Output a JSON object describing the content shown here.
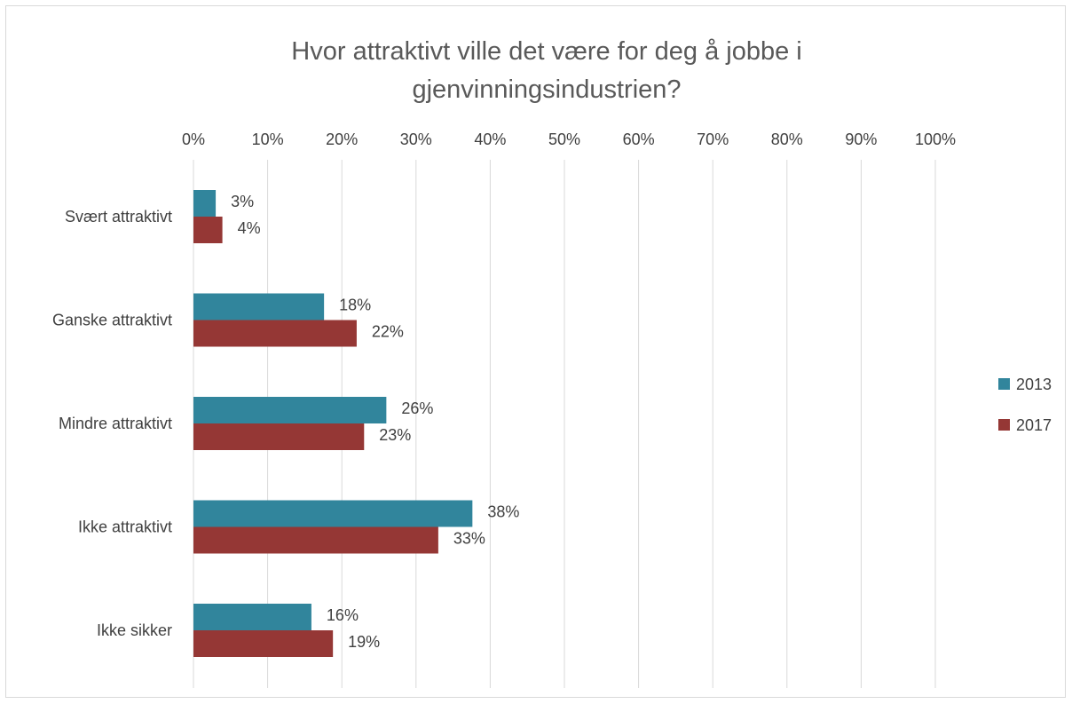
{
  "chart_data": {
    "type": "bar",
    "orientation": "horizontal",
    "title_lines": [
      "Hvor attraktivt ville det være for deg å jobbe i",
      "gjenvinningsindustrien?"
    ],
    "categories": [
      "Svært attraktivt",
      "Ganske attraktivt",
      "Mindre attraktivt",
      "Ikke attraktivt",
      "Ikke sikker"
    ],
    "series": [
      {
        "name": "2013",
        "color": "#31859c",
        "values": [
          3,
          18,
          26,
          38,
          16
        ],
        "labels": [
          "3%",
          "18%",
          "26%",
          "38%",
          "16%"
        ],
        "bar_lengths": [
          3,
          17.6,
          26,
          37.6,
          15.9
        ]
      },
      {
        "name": "2017",
        "color": "#953735",
        "values": [
          4,
          22,
          23,
          33,
          19
        ],
        "labels": [
          "4%",
          "22%",
          "23%",
          "33%",
          "19%"
        ],
        "bar_lengths": [
          3.9,
          22,
          23,
          33,
          18.8
        ]
      }
    ],
    "x_ticks": [
      "0%",
      "10%",
      "20%",
      "30%",
      "40%",
      "50%",
      "60%",
      "70%",
      "80%",
      "90%",
      "100%"
    ],
    "xlim": [
      0,
      100
    ],
    "axis_position": "top",
    "grid": true,
    "grid_color": "#d9d9d9",
    "legend_position": "right"
  }
}
